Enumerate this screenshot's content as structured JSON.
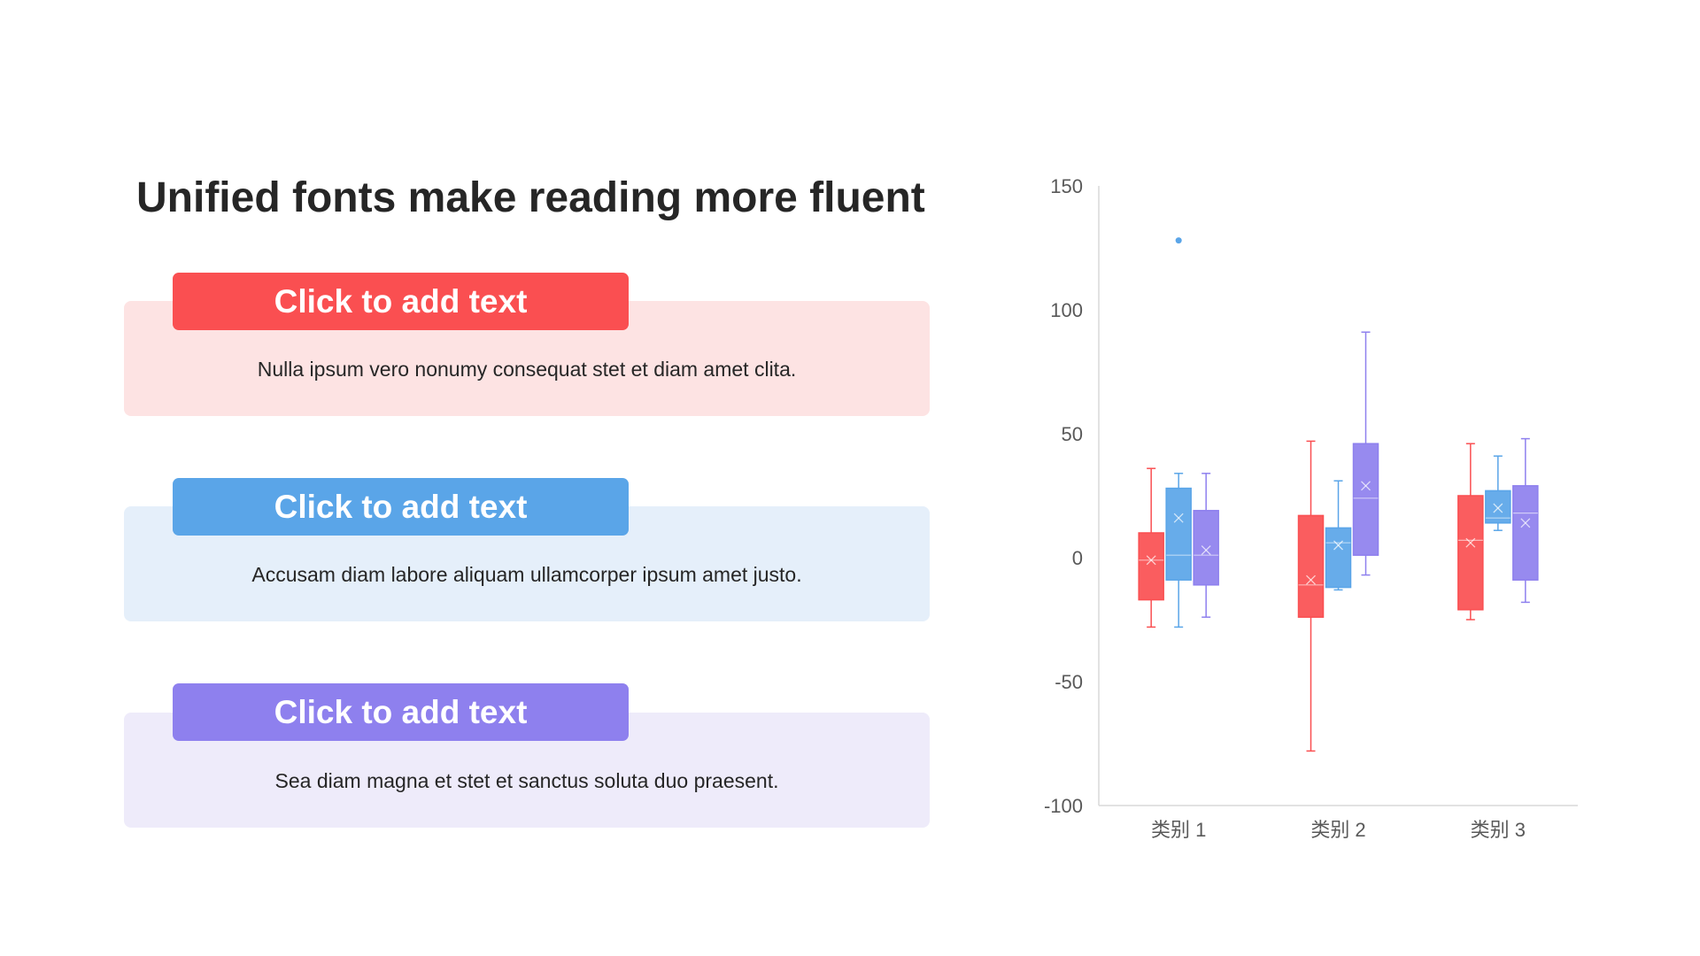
{
  "slide": {
    "title": "Unified fonts make reading more fluent",
    "cards": [
      {
        "label": "Click to add text",
        "body": "Nulla ipsum vero nonumy consequat stet et diam amet clita.",
        "accent": "#FA4F51",
        "background": "#FDE3E3"
      },
      {
        "label": "Click to add text",
        "body": "Accusam diam labore aliquam ullamcorper ipsum amet justo.",
        "accent": "#5AA5E8",
        "background": "#E5EFFA"
      },
      {
        "label": "Click to add text",
        "body": "Sea diam magna et stet et sanctus soluta duo praesent.",
        "accent": "#8E80EE",
        "background": "#EEEBFA"
      }
    ]
  },
  "chart_data": {
    "type": "box",
    "categories": [
      "类别 1",
      "类别 2",
      "类别 3"
    ],
    "ylim": [
      -100,
      150
    ],
    "yticks": [
      150,
      100,
      50,
      0,
      -50,
      -100
    ],
    "grid": false,
    "legend": "none",
    "series": [
      {
        "color": "#FA4F51",
        "boxes": [
          {
            "min": -28,
            "q1": -17,
            "median": -1,
            "q3": 10,
            "max": 36,
            "mean": -1,
            "outliers": []
          },
          {
            "min": -78,
            "q1": -24,
            "median": -11,
            "q3": 17,
            "max": 47,
            "mean": -9,
            "outliers": []
          },
          {
            "min": -25,
            "q1": -21,
            "median": 7,
            "q3": 25,
            "max": 46,
            "mean": 6,
            "outliers": []
          }
        ]
      },
      {
        "color": "#5AA5E8",
        "boxes": [
          {
            "min": -28,
            "q1": -9,
            "median": 1,
            "q3": 28,
            "max": 34,
            "mean": 16,
            "outliers": [
              128
            ]
          },
          {
            "min": -13,
            "q1": -12,
            "median": 6,
            "q3": 12,
            "max": 31,
            "mean": 5,
            "outliers": []
          },
          {
            "min": 11,
            "q1": 14,
            "median": 16,
            "q3": 27,
            "max": 41,
            "mean": 20,
            "outliers": []
          }
        ]
      },
      {
        "color": "#8E80EE",
        "boxes": [
          {
            "min": -24,
            "q1": -11,
            "median": 1,
            "q3": 19,
            "max": 34,
            "mean": 3,
            "outliers": []
          },
          {
            "min": -7,
            "q1": 1,
            "median": 24,
            "q3": 46,
            "max": 91,
            "mean": 29,
            "outliers": []
          },
          {
            "min": -18,
            "q1": -9,
            "median": 18,
            "q3": 29,
            "max": 48,
            "mean": 14,
            "outliers": []
          }
        ]
      }
    ]
  }
}
